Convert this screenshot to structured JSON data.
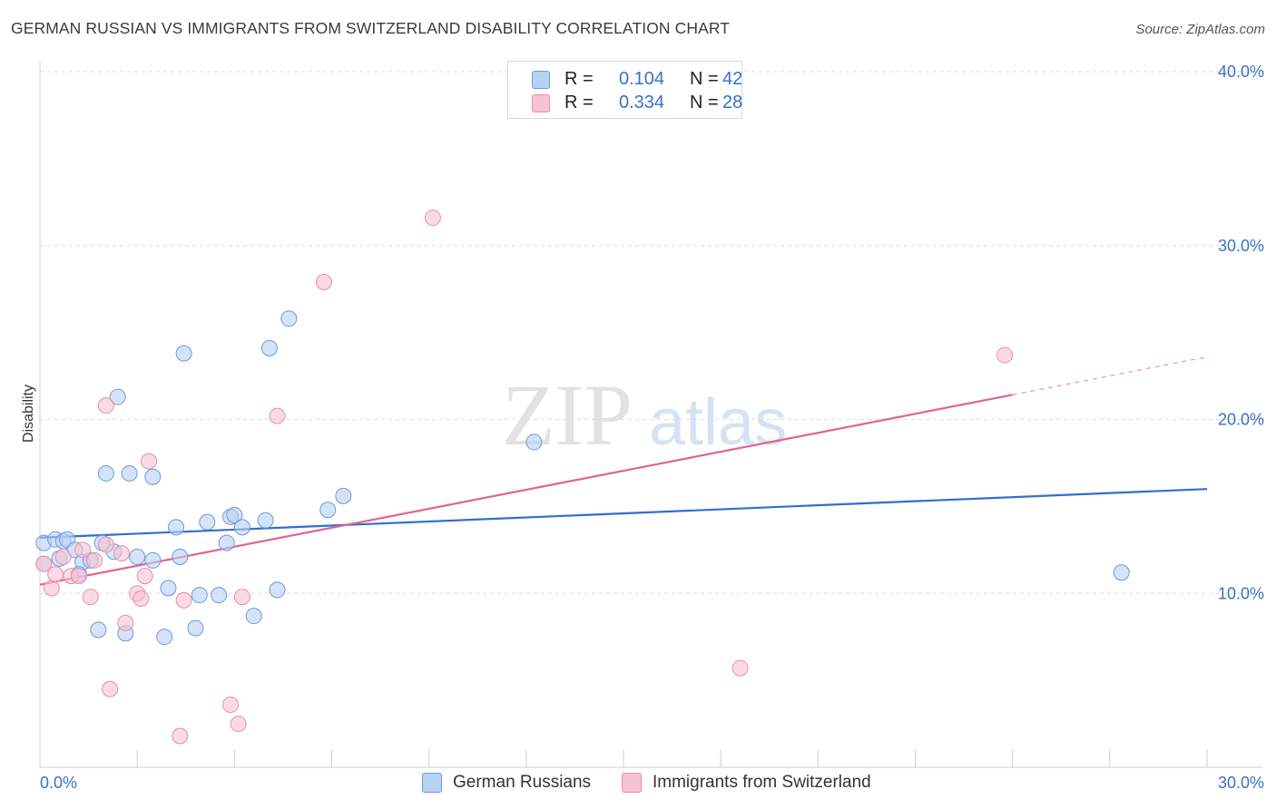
{
  "header": {
    "title": "GERMAN RUSSIAN VS IMMIGRANTS FROM SWITZERLAND DISABILITY CORRELATION CHART",
    "source": "Source: ZipAtlas.com"
  },
  "legend": {
    "r_label": "R =",
    "n_label": "N =",
    "rows": [
      {
        "r": "0.104",
        "n": "42"
      },
      {
        "r": "0.334",
        "n": "28"
      }
    ]
  },
  "watermark": {
    "zip": "ZIP",
    "atlas": "atlas"
  },
  "colors": {
    "blue_fill": "#b9d1f3",
    "blue_stroke": "#6d9ad8",
    "blue_line": "#2f6fcf",
    "pink_fill": "#f7c2d3",
    "pink_stroke": "#e88eaa",
    "pink_line": "#e0648e",
    "tick_label": "#3a72c4",
    "grid": "#dcdcdc"
  },
  "chart_data": {
    "type": "scatter",
    "xlabel": "",
    "ylabel": "Disability",
    "xlim": [
      0,
      30
    ],
    "ylim": [
      0,
      40
    ],
    "x_tick_labels": [
      "0.0%",
      "30.0%"
    ],
    "y_ticks": [
      10,
      20,
      30,
      40
    ],
    "y_tick_labels": [
      "10.0%",
      "20.0%",
      "30.0%",
      "40.0%"
    ],
    "grid": true,
    "legend_position": "top-center",
    "series": [
      {
        "name": "German Russians",
        "color": "#b9d1f3",
        "r": 0.104,
        "n": 42,
        "trend": {
          "x": [
            0,
            30
          ],
          "y": [
            13.2,
            16.0
          ],
          "dashed_from": null
        },
        "points": [
          [
            0.1,
            12.9
          ],
          [
            0.4,
            13.1
          ],
          [
            0.6,
            13.0
          ],
          [
            0.7,
            13.1
          ],
          [
            0.5,
            12.0
          ],
          [
            0.9,
            12.5
          ],
          [
            1.1,
            11.8
          ],
          [
            1.0,
            11.1
          ],
          [
            1.3,
            11.9
          ],
          [
            1.6,
            12.9
          ],
          [
            1.9,
            12.4
          ],
          [
            2.0,
            21.3
          ],
          [
            1.7,
            16.9
          ],
          [
            2.3,
            16.9
          ],
          [
            2.9,
            16.7
          ],
          [
            2.5,
            12.1
          ],
          [
            2.9,
            11.9
          ],
          [
            3.6,
            12.1
          ],
          [
            3.3,
            10.3
          ],
          [
            3.5,
            13.8
          ],
          [
            3.7,
            23.8
          ],
          [
            4.3,
            14.1
          ],
          [
            4.9,
            14.4
          ],
          [
            5.0,
            14.5
          ],
          [
            5.2,
            13.8
          ],
          [
            4.8,
            12.9
          ],
          [
            5.8,
            14.2
          ],
          [
            5.9,
            24.1
          ],
          [
            6.4,
            25.8
          ],
          [
            7.4,
            14.8
          ],
          [
            7.8,
            15.6
          ],
          [
            4.1,
            9.9
          ],
          [
            4.6,
            9.9
          ],
          [
            6.1,
            10.2
          ],
          [
            5.5,
            8.7
          ],
          [
            4.0,
            8.0
          ],
          [
            1.5,
            7.9
          ],
          [
            2.2,
            7.7
          ],
          [
            3.2,
            7.5
          ],
          [
            12.7,
            18.7
          ],
          [
            27.8,
            11.2
          ],
          [
            0.1,
            11.7
          ]
        ]
      },
      {
        "name": "Immigrants from Switzerland",
        "color": "#f7c2d3",
        "r": 0.334,
        "n": 28,
        "trend": {
          "x": [
            0,
            30
          ],
          "y": [
            10.5,
            23.6
          ],
          "dashed_from": 25.0
        },
        "points": [
          [
            0.1,
            11.7
          ],
          [
            0.3,
            10.3
          ],
          [
            0.4,
            11.1
          ],
          [
            0.6,
            12.1
          ],
          [
            0.8,
            11.0
          ],
          [
            1.0,
            11.0
          ],
          [
            1.1,
            12.5
          ],
          [
            1.4,
            11.9
          ],
          [
            1.3,
            9.8
          ],
          [
            1.7,
            12.8
          ],
          [
            2.1,
            12.3
          ],
          [
            2.5,
            10.0
          ],
          [
            2.6,
            9.7
          ],
          [
            2.7,
            11.0
          ],
          [
            2.8,
            17.6
          ],
          [
            3.7,
            9.6
          ],
          [
            5.2,
            9.8
          ],
          [
            6.1,
            20.2
          ],
          [
            1.7,
            20.8
          ],
          [
            7.3,
            27.9
          ],
          [
            10.1,
            31.6
          ],
          [
            2.2,
            8.3
          ],
          [
            1.8,
            4.5
          ],
          [
            4.9,
            3.6
          ],
          [
            5.1,
            2.5
          ],
          [
            3.6,
            1.8
          ],
          [
            18.0,
            5.7
          ],
          [
            24.8,
            23.7
          ]
        ]
      }
    ]
  },
  "bottom_legend": {
    "items": [
      "German Russians",
      "Immigrants from Switzerland"
    ]
  }
}
